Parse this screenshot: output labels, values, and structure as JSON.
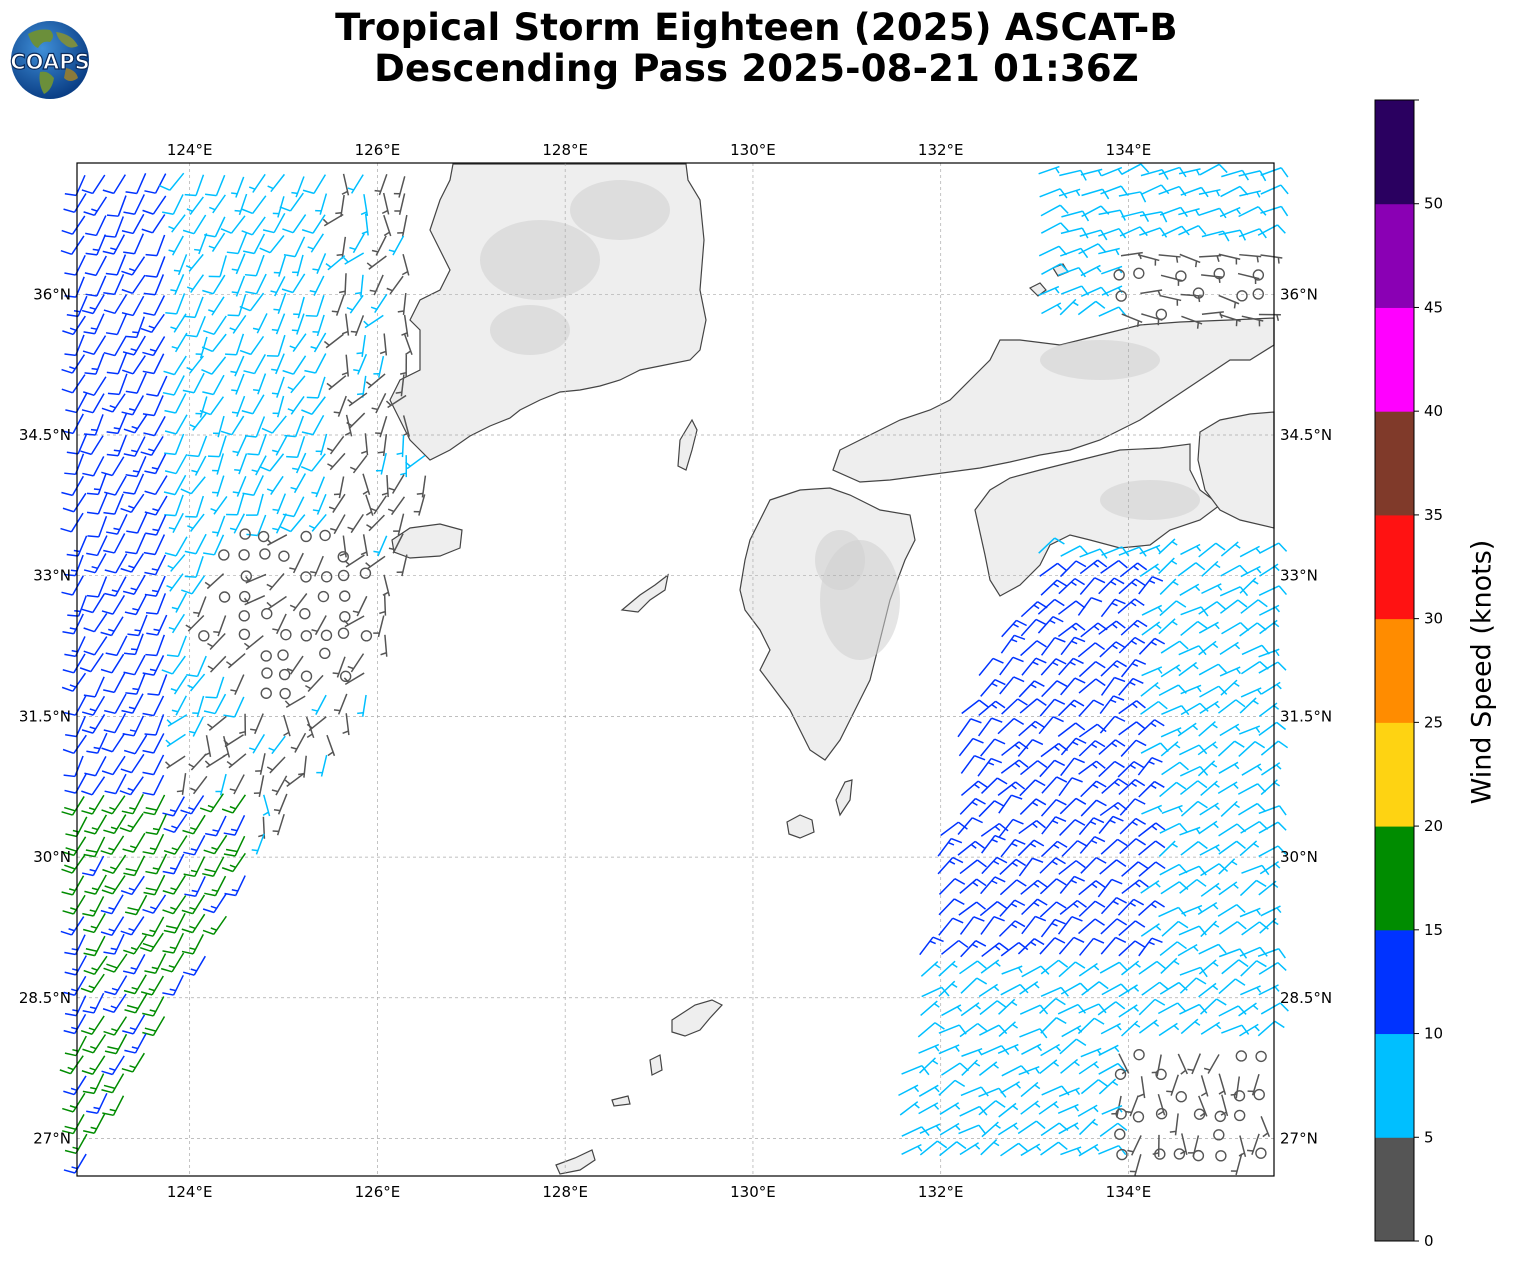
{
  "title_line1": "Tropical Storm Eighteen (2025) ASCAT-B",
  "title_line2": "Descending Pass 2025-08-21 01:36Z",
  "logo_text": "COAPS",
  "lon_ticks": [
    "124°E",
    "126°E",
    "128°E",
    "130°E",
    "132°E",
    "134°E"
  ],
  "lat_ticks": [
    "36°N",
    "34.5°N",
    "33°N",
    "31.5°N",
    "30°N",
    "28.5°N",
    "27°N"
  ],
  "colorbar": {
    "label": "Wind Speed (knots)",
    "tick_labels": [
      "0",
      "5",
      "10",
      "15",
      "20",
      "25",
      "30",
      "35",
      "40",
      "45",
      "50"
    ],
    "colors": [
      "#555555",
      "#00bfff",
      "#0033ff",
      "#008c00",
      "#fed312",
      "#ff8c00",
      "#ff1212",
      "#803a2a",
      "#ff00ff",
      "#8a00b4",
      "#2a0060"
    ]
  },
  "chart_data": {
    "type": "wind-barb-map",
    "extent": {
      "lon": [
        122.8,
        135.55
      ],
      "lat": [
        26.6,
        37.4
      ]
    },
    "lon_gridlines": [
      124,
      126,
      128,
      130,
      132,
      134
    ],
    "lat_gridlines": [
      36,
      34.5,
      33,
      31.5,
      30,
      28.5,
      27
    ],
    "units": "knots",
    "swaths": [
      {
        "region": "west",
        "description_lon_range": [
          122.8,
          126.8
        ]
      },
      {
        "region": "east",
        "description_lon_range": [
          131.4,
          135.55
        ]
      }
    ]
  }
}
